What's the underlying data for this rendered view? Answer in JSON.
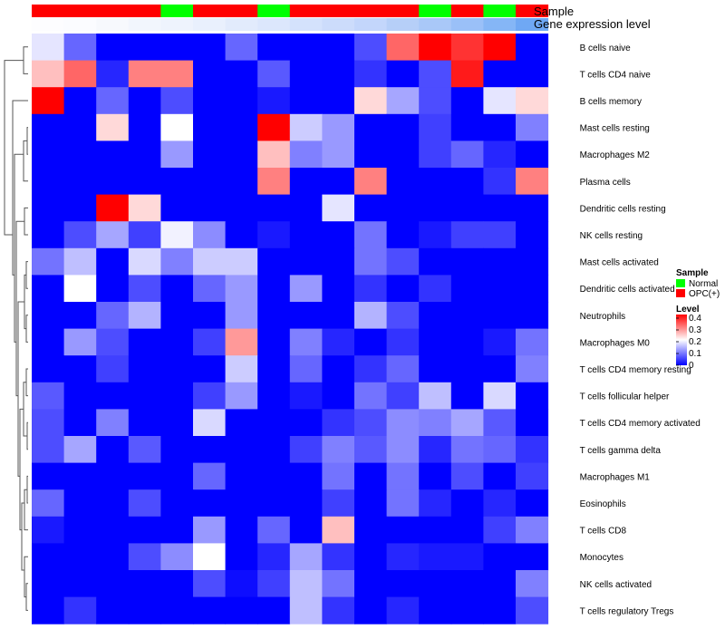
{
  "chart_data": {
    "type": "heatmap",
    "annotation_tracks": [
      "Sample",
      "Gene expression level"
    ],
    "sample_group_order": [
      "OPC(+)",
      "OPC(+)",
      "OPC(+)",
      "OPC(+)",
      "Normal",
      "OPC(+)",
      "OPC(+)",
      "Normal",
      "OPC(+)",
      "OPC(+)",
      "OPC(+)",
      "OPC(+)",
      "Normal",
      "OPC(+)",
      "Normal",
      "OPC(+)"
    ],
    "gene_expression_colors": [
      "#fdfdff",
      "#fbfcff",
      "#f7f9fd",
      "#f2f6fd",
      "#eef3fd",
      "#e9f0fd",
      "#e2ebfc",
      "#dce7fc",
      "#d4e2fc",
      "#ccdcfb",
      "#c3d6fb",
      "#b6cff8",
      "#a9c8f8",
      "#9ac0f8",
      "#85b6f6",
      "#6fa8f4"
    ],
    "rows": [
      "B cells naive",
      "T cells CD4 naive",
      "B cells memory",
      "Mast cells resting",
      "Macrophages M2",
      "Plasma cells",
      "Dendritic cells resting",
      "NK cells resting",
      "Mast cells activated",
      "Dendritic cells activated",
      "Neutrophils",
      "Macrophages M0",
      "T cells CD4 memory resting",
      "T cells follicular helper",
      "T cells CD4 memory activated",
      "T cells gamma delta",
      "Macrophages M1",
      "Eosinophils",
      "T cells CD8",
      "Monocytes",
      "NK cells activated",
      "T cells regulatory  Tregs"
    ],
    "values": [
      [
        0.18,
        0.08,
        0,
        0,
        0,
        0,
        0.08,
        0,
        0,
        0,
        0.06,
        0.32,
        0.4,
        0.36,
        0.4,
        0
      ],
      [
        0.25,
        0.32,
        0.03,
        0.3,
        0.3,
        0,
        0,
        0.07,
        0,
        0,
        0.04,
        0,
        0.06,
        0.38,
        0,
        0
      ],
      [
        0.4,
        0,
        0.08,
        0,
        0.06,
        0,
        0,
        0.02,
        0,
        0,
        0.23,
        0.13,
        0.06,
        0,
        0.18,
        0.23
      ],
      [
        0,
        0,
        0.23,
        0,
        0.2,
        0,
        0,
        0.4,
        0.16,
        0.12,
        0,
        0,
        0.05,
        0,
        0,
        0.1
      ],
      [
        0,
        0,
        0,
        0,
        0.12,
        0,
        0,
        0.25,
        0.1,
        0.12,
        0,
        0,
        0.05,
        0.08,
        0.03,
        0
      ],
      [
        0,
        0,
        0,
        0,
        0,
        0,
        0,
        0.3,
        0,
        0,
        0.3,
        0,
        0,
        0,
        0.04,
        0.3
      ],
      [
        0,
        0,
        0.4,
        0.23,
        0,
        0,
        0,
        0,
        0,
        0.18,
        0,
        0,
        0,
        0,
        0,
        0
      ],
      [
        0,
        0.06,
        0.13,
        0.05,
        0.19,
        0.11,
        0,
        0.02,
        0,
        0,
        0.09,
        0,
        0.02,
        0.05,
        0.05,
        0
      ],
      [
        0.09,
        0.15,
        0,
        0.17,
        0.1,
        0.16,
        0.16,
        0,
        0,
        0,
        0.09,
        0.06,
        0,
        0,
        0,
        0
      ],
      [
        0,
        0.2,
        0,
        0.06,
        0,
        0.08,
        0.12,
        0,
        0.12,
        0,
        0.04,
        0,
        0.04,
        0,
        0,
        0
      ],
      [
        0,
        0,
        0.08,
        0.14,
        0,
        0,
        0.12,
        0,
        0,
        0,
        0.14,
        0.06,
        0,
        0,
        0,
        0
      ],
      [
        0,
        0.12,
        0.06,
        0,
        0,
        0.05,
        0.28,
        0,
        0.1,
        0.03,
        0,
        0.04,
        0,
        0,
        0.02,
        0.09
      ],
      [
        0,
        0,
        0.05,
        0,
        0,
        0,
        0.16,
        0,
        0.08,
        0,
        0.04,
        0.08,
        0,
        0,
        0,
        0.1
      ],
      [
        0.07,
        0,
        0,
        0,
        0,
        0.05,
        0.12,
        0,
        0.02,
        0,
        0.09,
        0.05,
        0.15,
        0,
        0.17,
        0
      ],
      [
        0.06,
        0,
        0.1,
        0,
        0,
        0.17,
        0,
        0,
        0,
        0.04,
        0.06,
        0.11,
        0.1,
        0.13,
        0.07,
        0
      ],
      [
        0.06,
        0.13,
        0,
        0.07,
        0,
        0,
        0,
        0,
        0.05,
        0.1,
        0.07,
        0.11,
        0.03,
        0.09,
        0.08,
        0.04
      ],
      [
        0,
        0,
        0,
        0,
        0,
        0.08,
        0,
        0,
        0,
        0.09,
        0,
        0.09,
        0,
        0.06,
        0,
        0.05
      ],
      [
        0.08,
        0,
        0,
        0.06,
        0,
        0,
        0,
        0,
        0,
        0.05,
        0,
        0.09,
        0.03,
        0,
        0.03,
        0
      ],
      [
        0.02,
        0,
        0,
        0,
        0,
        0.12,
        0,
        0.08,
        0,
        0.25,
        0,
        0,
        0,
        0,
        0.05,
        0.1
      ],
      [
        0,
        0,
        0,
        0.06,
        0.11,
        0.2,
        0,
        0.03,
        0.13,
        0.04,
        0,
        0.03,
        0.02,
        0.02,
        0,
        0
      ],
      [
        0,
        0,
        0,
        0,
        0,
        0.06,
        0.01,
        0.05,
        0.15,
        0.09,
        0,
        0,
        0,
        0,
        0,
        0.1
      ],
      [
        0,
        0.04,
        0,
        0,
        0,
        0,
        0,
        0,
        0.15,
        0.04,
        0,
        0.03,
        0,
        0,
        0,
        0.06
      ]
    ],
    "scale": {
      "min": 0,
      "max": 0.4,
      "low_color": "#0000ff",
      "mid_color": "#ffffff",
      "high_color": "#ff0000",
      "mid_value": 0.2
    },
    "legend": {
      "sample_title": "Sample",
      "sample_entries": [
        {
          "label": "Normal",
          "color": "#00ff00"
        },
        {
          "label": "OPC(+)",
          "color": "#ff0000"
        }
      ],
      "level_title": "Level",
      "level_ticks": [
        "0.4",
        "0.3",
        "0.2",
        "0.1",
        "0"
      ],
      "placement": "right"
    },
    "row_dendrogram": "left",
    "grid": false
  }
}
